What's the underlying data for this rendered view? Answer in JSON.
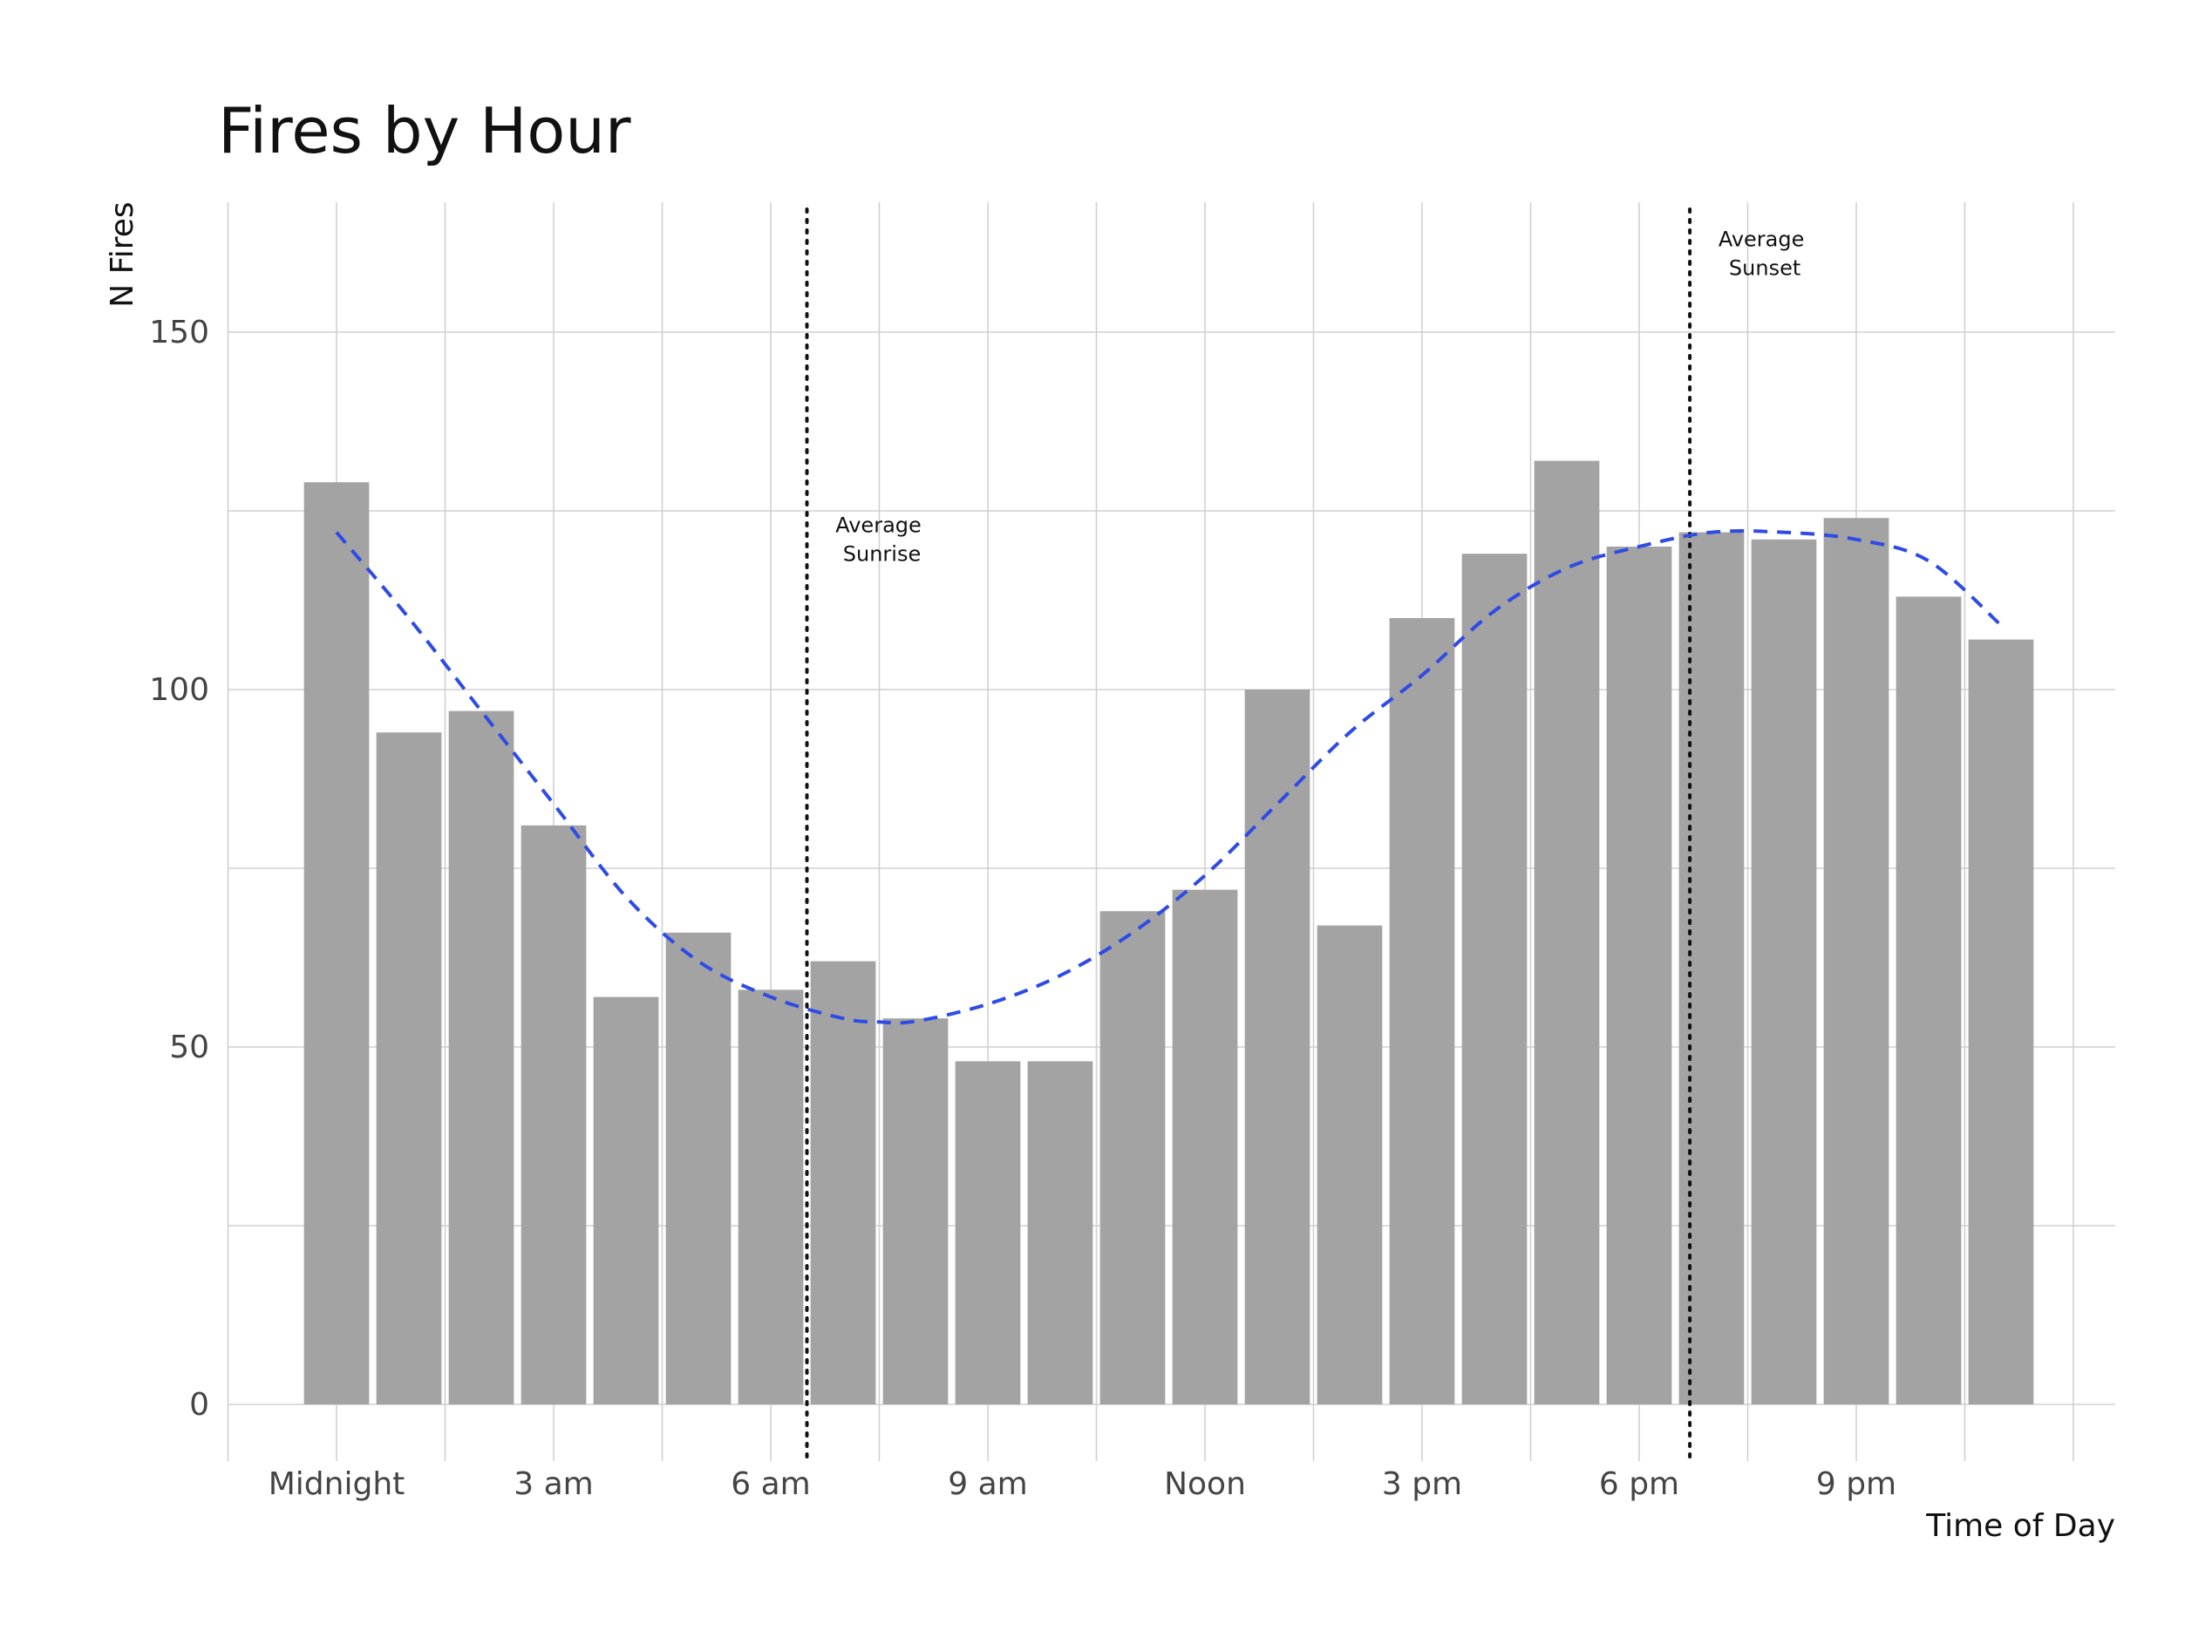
{
  "chart_data": {
    "type": "bar",
    "title": "Fires by Hour",
    "xlabel": "Time of Day",
    "ylabel": "N Fires",
    "x": [
      0,
      1,
      2,
      3,
      4,
      5,
      6,
      7,
      8,
      9,
      10,
      11,
      12,
      13,
      14,
      15,
      16,
      17,
      18,
      19,
      20,
      21,
      22,
      23
    ],
    "values": [
      129,
      94,
      97,
      81,
      57,
      66,
      58,
      62,
      54,
      48,
      48,
      69,
      72,
      100,
      67,
      110,
      119,
      132,
      120,
      122,
      121,
      124,
      113,
      107
    ],
    "xlim": [
      -1.5,
      24
    ],
    "ylim": [
      -7,
      168
    ],
    "x_ticks": [
      {
        "value": 0,
        "label": "Midnight"
      },
      {
        "value": 3,
        "label": "3 am"
      },
      {
        "value": 6,
        "label": "6 am"
      },
      {
        "value": 9,
        "label": "9 am"
      },
      {
        "value": 12,
        "label": "Noon"
      },
      {
        "value": 15,
        "label": "3 pm"
      },
      {
        "value": 18,
        "label": "6 pm"
      },
      {
        "value": 21,
        "label": "9 pm"
      }
    ],
    "x_minor_grid": [
      -1.5,
      1.5,
      4.5,
      7.5,
      10.5,
      13.5,
      16.5,
      19.5,
      22.5,
      24
    ],
    "y_ticks": [
      0,
      50,
      100,
      150
    ],
    "y_minor_grid": [
      25,
      75,
      125
    ],
    "grid": true,
    "bar_color": "#a3a3a3",
    "smooth": {
      "name": "",
      "color": "#2f4be6",
      "style": "dashed",
      "x": [
        0,
        1,
        2,
        3,
        4,
        5,
        6,
        7,
        7.5,
        8,
        9,
        10,
        11,
        12,
        13,
        14,
        15,
        16,
        17,
        18,
        19,
        20,
        21,
        22,
        23
      ],
      "y": [
        122,
        110,
        97,
        84,
        71,
        62,
        57,
        54,
        53.5,
        53.6,
        56,
        60,
        66,
        74,
        84,
        94,
        102,
        111,
        117,
        120,
        122,
        122,
        121,
        118,
        109
      ]
    },
    "reference_lines": [
      {
        "x": 6.5,
        "style": "dotted",
        "label_line1": "Average",
        "label_line2": "Sunrise",
        "label_y": [
          122,
          118
        ]
      },
      {
        "x": 18.7,
        "style": "dotted",
        "label_line1": "Average",
        "label_line2": "Sunset",
        "label_y": [
          162,
          158
        ]
      }
    ]
  }
}
